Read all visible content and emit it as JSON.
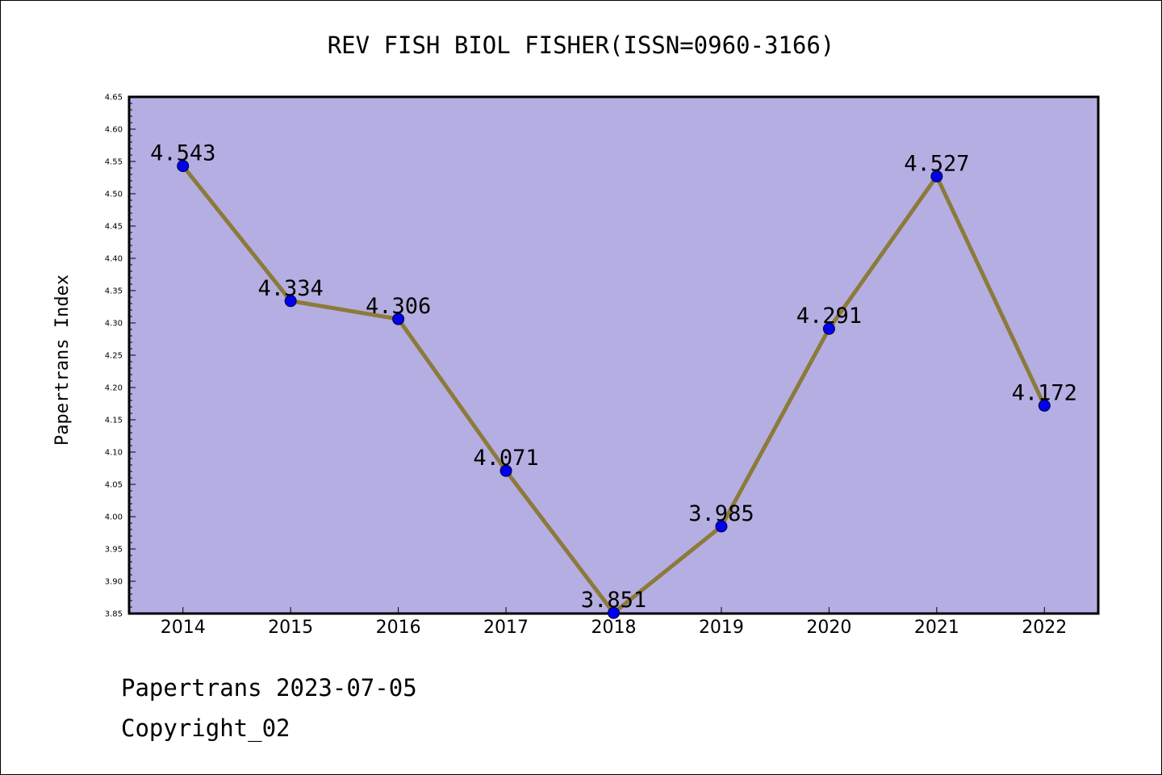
{
  "chart_data": {
    "type": "line",
    "title": "REV FISH BIOL FISHER(ISSN=0960-3166)",
    "xlabel": "",
    "ylabel": "Papertrans Index",
    "categories": [
      "2014",
      "2015",
      "2016",
      "2017",
      "2018",
      "2019",
      "2020",
      "2021",
      "2022"
    ],
    "values": [
      4.543,
      4.334,
      4.306,
      4.071,
      3.851,
      3.985,
      4.291,
      4.527,
      4.172
    ],
    "value_labels": [
      "4.543",
      "4.334",
      "4.306",
      "4.071",
      "3.851",
      "3.985",
      "4.291",
      "4.527",
      "4.172"
    ],
    "ylim": [
      3.85,
      4.65
    ],
    "yticks": [
      "3.85",
      "3.90",
      "3.95",
      "4.00",
      "4.05",
      "4.10",
      "4.15",
      "4.20",
      "4.25",
      "4.30",
      "4.35",
      "4.40",
      "4.45",
      "4.50",
      "4.55",
      "4.60",
      "4.65"
    ],
    "grid": false,
    "legend": "none",
    "colors": {
      "plot_background": "#b5aee2",
      "line": "#8c7a3a",
      "marker": "#0000ee",
      "axis": "#000000"
    }
  },
  "footer": {
    "line1": "Papertrans 2023-07-05",
    "line2": "Copyright_02"
  }
}
